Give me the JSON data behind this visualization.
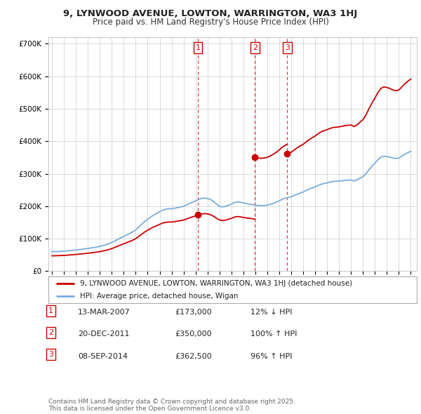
{
  "title_line1": "9, LYNWOOD AVENUE, LOWTON, WARRINGTON, WA3 1HJ",
  "title_line2": "Price paid vs. HM Land Registry's House Price Index (HPI)",
  "hpi_color": "#7aacdc",
  "sale_color": "#cc0000",
  "vline_color": "#cc0000",
  "background_color": "#ffffff",
  "grid_color": "#cccccc",
  "legend_entry1": "9, LYNWOOD AVENUE, LOWTON, WARRINGTON, WA3 1HJ (detached house)",
  "legend_entry2": "HPI: Average price, detached house, Wigan",
  "hpi_index": {
    "1995-01": 100.0,
    "1995-04": 100.5,
    "1995-07": 101.0,
    "1995-10": 101.5,
    "1996-01": 102.5,
    "1996-04": 104.0,
    "1996-07": 105.5,
    "1996-10": 107.0,
    "1997-01": 108.5,
    "1997-04": 110.5,
    "1997-07": 112.5,
    "1997-10": 114.5,
    "1998-01": 116.5,
    "1998-04": 119.0,
    "1998-07": 121.5,
    "1998-10": 124.0,
    "1999-01": 127.0,
    "1999-04": 131.0,
    "1999-07": 136.0,
    "1999-10": 141.0,
    "2000-01": 147.0,
    "2000-04": 155.0,
    "2000-07": 163.0,
    "2000-10": 171.0,
    "2001-01": 178.0,
    "2001-04": 186.0,
    "2001-07": 194.0,
    "2001-10": 202.0,
    "2002-01": 212.0,
    "2002-04": 226.0,
    "2002-07": 241.0,
    "2002-10": 255.0,
    "2003-01": 267.0,
    "2003-04": 278.0,
    "2003-07": 288.0,
    "2003-10": 296.0,
    "2004-01": 305.0,
    "2004-04": 313.0,
    "2004-07": 318.0,
    "2004-10": 320.0,
    "2005-01": 320.0,
    "2005-04": 323.0,
    "2005-07": 326.0,
    "2005-10": 329.0,
    "2006-01": 333.0,
    "2006-04": 340.0,
    "2006-07": 347.0,
    "2006-10": 354.0,
    "2007-01": 360.0,
    "2007-04": 368.0,
    "2007-07": 373.0,
    "2007-10": 375.0,
    "2008-01": 373.0,
    "2008-04": 368.0,
    "2008-07": 358.0,
    "2008-10": 345.0,
    "2009-01": 333.0,
    "2009-04": 330.0,
    "2009-07": 332.0,
    "2009-10": 338.0,
    "2010-01": 344.0,
    "2010-04": 352.0,
    "2010-07": 356.0,
    "2010-10": 354.0,
    "2011-01": 350.0,
    "2011-04": 347.0,
    "2011-07": 344.0,
    "2011-10": 342.0,
    "2012-01": 338.0,
    "2012-04": 337.0,
    "2012-07": 336.0,
    "2012-10": 337.0,
    "2013-01": 339.0,
    "2013-04": 343.0,
    "2013-07": 348.0,
    "2013-10": 354.0,
    "2014-01": 361.0,
    "2014-04": 369.0,
    "2014-07": 375.0,
    "2014-10": 378.0,
    "2015-01": 381.0,
    "2015-04": 388.0,
    "2015-07": 395.0,
    "2015-10": 401.0,
    "2016-01": 406.0,
    "2016-04": 414.0,
    "2016-07": 421.0,
    "2016-10": 427.0,
    "2017-01": 433.0,
    "2017-04": 440.0,
    "2017-07": 446.0,
    "2017-10": 450.0,
    "2018-01": 453.0,
    "2018-04": 457.0,
    "2018-07": 460.0,
    "2018-10": 461.0,
    "2019-01": 462.0,
    "2019-04": 464.0,
    "2019-07": 466.0,
    "2019-10": 467.0,
    "2020-01": 468.0,
    "2020-04": 463.0,
    "2020-07": 468.0,
    "2020-10": 477.0,
    "2021-01": 485.0,
    "2021-04": 500.0,
    "2021-07": 520.0,
    "2021-10": 538.0,
    "2022-01": 554.0,
    "2022-04": 572.0,
    "2022-07": 585.0,
    "2022-10": 590.0,
    "2023-01": 588.0,
    "2023-04": 585.0,
    "2023-07": 580.0,
    "2023-10": 578.0,
    "2024-01": 580.0,
    "2024-04": 590.0,
    "2024-07": 600.0,
    "2024-10": 608.0,
    "2025-01": 615.0
  },
  "sale1_date": 2007.19,
  "sale1_price": 173000,
  "sale2_date": 2011.97,
  "sale2_price": 350000,
  "sale3_date": 2014.67,
  "sale3_price": 362500,
  "hpi_base_price": 60000,
  "ylim": [
    0,
    720000
  ],
  "yticks": [
    0,
    100000,
    200000,
    300000,
    400000,
    500000,
    600000,
    700000
  ],
  "ytick_labels": [
    "£0",
    "£100K",
    "£200K",
    "£300K",
    "£400K",
    "£500K",
    "£600K",
    "£700K"
  ],
  "table_data": [
    [
      "1",
      "13-MAR-2007",
      "£173,000",
      "12% ↓ HPI"
    ],
    [
      "2",
      "20-DEC-2011",
      "£350,000",
      "100% ↑ HPI"
    ],
    [
      "3",
      "08-SEP-2014",
      "£362,500",
      "96% ↑ HPI"
    ]
  ],
  "footer_text": "Contains HM Land Registry data © Crown copyright and database right 2025.\nThis data is licensed under the Open Government Licence v3.0."
}
